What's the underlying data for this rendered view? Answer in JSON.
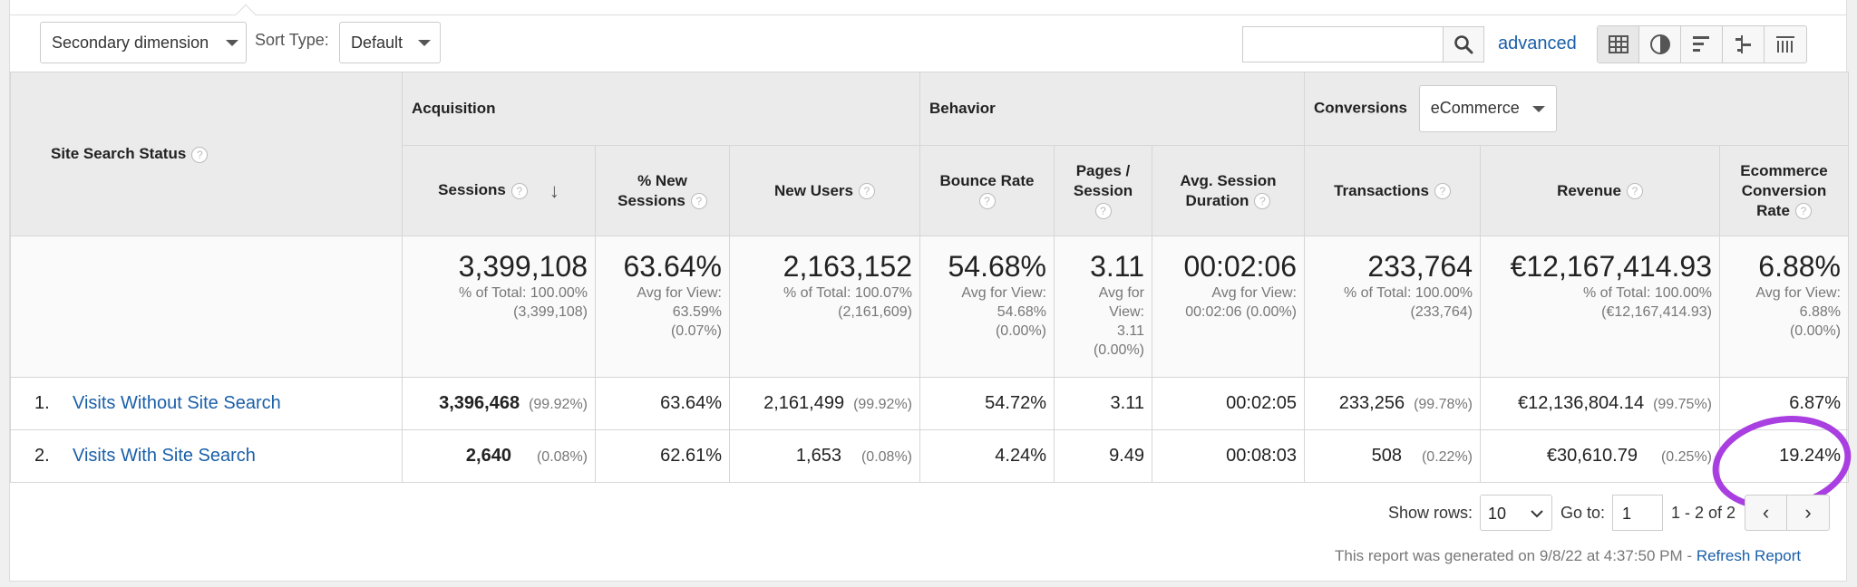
{
  "toolbar": {
    "secondary_dimension": "Secondary dimension",
    "sort_type_label": "Sort Type:",
    "sort_type_value": "Default",
    "search_value": "",
    "advanced": "advanced",
    "views": [
      "table-icon",
      "pie-icon",
      "bar-icon",
      "comparison-icon",
      "pivot-icon"
    ]
  },
  "table": {
    "dimension_header": "Site Search Status",
    "groups": {
      "acquisition": "Acquisition",
      "behavior": "Behavior",
      "conversions": "Conversions",
      "conversions_select": "eCommerce"
    },
    "columns": {
      "sessions": "Sessions",
      "new_sessions_1": "% New",
      "new_sessions_2": "Sessions",
      "new_users": "New Users",
      "bounce_rate": "Bounce Rate",
      "pages_session_1": "Pages /",
      "pages_session_2": "Session",
      "avg_duration_1": "Avg. Session",
      "avg_duration_2": "Duration",
      "transactions": "Transactions",
      "revenue": "Revenue",
      "conv_rate_1": "Ecommerce",
      "conv_rate_2": "Conversion",
      "conv_rate_3": "Rate"
    },
    "totals": {
      "sessions": {
        "big": "3,399,108",
        "l1": "% of Total: 100.00%",
        "l2": "(3,399,108)"
      },
      "new_sessions": {
        "big": "63.64%",
        "l1": "Avg for View:",
        "l2": "63.59%",
        "l3": "(0.07%)"
      },
      "new_users": {
        "big": "2,163,152",
        "l1": "% of Total: 100.07%",
        "l2": "(2,161,609)"
      },
      "bounce_rate": {
        "big": "54.68%",
        "l1": "Avg for View:",
        "l2": "54.68%",
        "l3": "(0.00%)"
      },
      "pages_session": {
        "big": "3.11",
        "l1": "Avg for",
        "l2": "View:",
        "l3": "3.11",
        "l4": "(0.00%)"
      },
      "avg_duration": {
        "big": "00:02:06",
        "l1": "Avg for View:",
        "l2": "00:02:06 (0.00%)"
      },
      "transactions": {
        "big": "233,764",
        "l1": "% of Total: 100.00%",
        "l2": "(233,764)"
      },
      "revenue": {
        "big": "€12,167,414.93",
        "l1": "% of Total: 100.00%",
        "l2": "(€12,167,414.93)"
      },
      "conv_rate": {
        "big": "6.88%",
        "l1": "Avg for View:",
        "l2": "6.88%",
        "l3": "(0.00%)"
      }
    },
    "rows": [
      {
        "index": "1.",
        "name": "Visits Without Site Search",
        "sessions": "3,396,468",
        "sessions_pct": "(99.92%)",
        "new_sessions": "63.64%",
        "new_users": "2,161,499",
        "new_users_pct": "(99.92%)",
        "bounce_rate": "54.72%",
        "pages_session": "3.11",
        "avg_duration": "00:02:05",
        "transactions": "233,256",
        "transactions_pct": "(99.78%)",
        "revenue": "€12,136,804.14",
        "revenue_pct": "(99.75%)",
        "conv_rate": "6.87%"
      },
      {
        "index": "2.",
        "name": "Visits With Site Search",
        "sessions": "2,640",
        "sessions_pct": "(0.08%)",
        "new_sessions": "62.61%",
        "new_users": "1,653",
        "new_users_pct": "(0.08%)",
        "bounce_rate": "4.24%",
        "pages_session": "9.49",
        "avg_duration": "00:08:03",
        "transactions": "508",
        "transactions_pct": "(0.22%)",
        "revenue": "€30,610.79",
        "revenue_pct": "(0.25%)",
        "conv_rate": "19.24%"
      }
    ]
  },
  "footer": {
    "show_rows_label": "Show rows:",
    "show_rows_value": "10",
    "goto_label": "Go to:",
    "goto_value": "1",
    "range": "1 - 2 of 2",
    "prev": "‹",
    "next": "›",
    "generated": "This report was generated on 9/8/22 at 4:37:50 PM -",
    "refresh": "Refresh Report"
  },
  "colors": {
    "link": "#1a5fa8",
    "highlight": "#a93fe0",
    "header_bg": "#ebebeb"
  }
}
